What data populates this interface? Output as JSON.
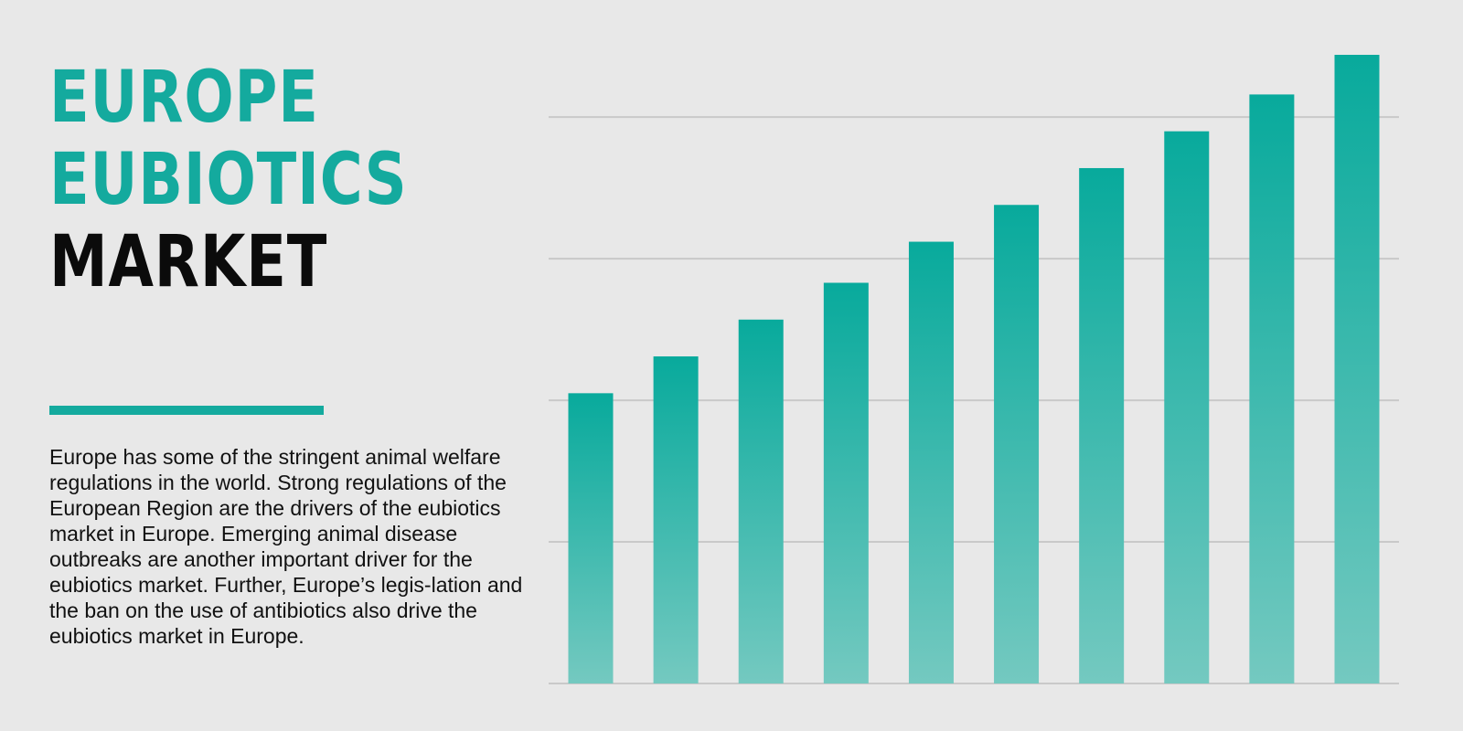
{
  "title": {
    "line1": "EUROPE",
    "line2": "EUBIOTICS",
    "line3": "MARKET"
  },
  "description": "Europe has some of the stringent animal welfare regulations in the world. Strong regulations of the European Region are the drivers of the eubiotics market in Europe. Emerging animal disease outbreaks are another important driver for the eubiotics market. Further, Europe’s legis-lation and the ban on the use of antibiotics also drive the eubiotics market in Europe.",
  "colors": {
    "accent": "#14aa9e",
    "bar_top": "#08aa9c",
    "bar_bottom": "#74c9c0",
    "grid": "#c9c9c9",
    "background": "#e8e8e8"
  },
  "chart_data": {
    "type": "bar",
    "title": "",
    "xlabel": "",
    "ylabel": "",
    "categories": [
      "",
      "",
      "",
      "",
      "",
      "",
      "",
      "",
      "",
      ""
    ],
    "values": [
      2.05,
      2.31,
      2.57,
      2.83,
      3.12,
      3.38,
      3.64,
      3.9,
      4.16,
      4.44
    ],
    "ylim": [
      0,
      4.44
    ],
    "grid": true,
    "gridlines": [
      0,
      1,
      2,
      3,
      4
    ],
    "legend": "none"
  }
}
